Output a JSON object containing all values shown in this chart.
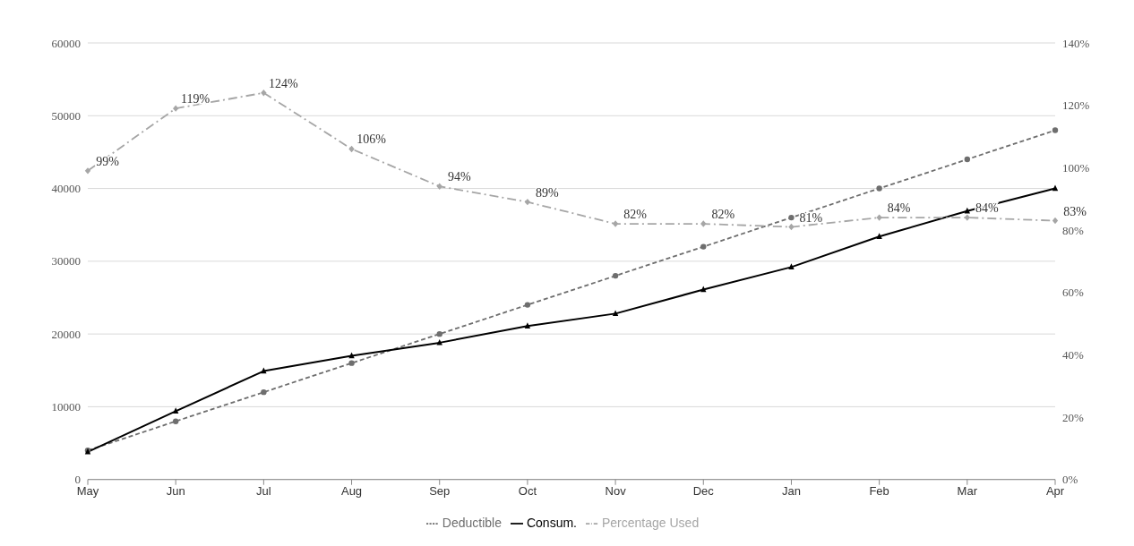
{
  "chart_data": {
    "type": "line",
    "categories": [
      "May",
      "Jun",
      "Jul",
      "Aug",
      "Sep",
      "Oct",
      "Nov",
      "Dec",
      "Jan",
      "Feb",
      "Mar",
      "Apr"
    ],
    "series": [
      {
        "name": "Deductible",
        "color": "#6e6e6e",
        "line_style": "dashed",
        "marker": "circle",
        "values": [
          4000,
          8000,
          12000,
          16000,
          20000,
          24000,
          28000,
          32000,
          36000,
          40000,
          44000,
          48000
        ]
      },
      {
        "name": "Consum.",
        "color": "#000000",
        "line_style": "solid",
        "marker": "triangle",
        "values": [
          3800,
          9400,
          14900,
          17000,
          18800,
          21100,
          22800,
          26100,
          29200,
          33400,
          36900,
          40000
        ]
      },
      {
        "name": "Percentage Used",
        "color": "#a6a6a6",
        "line_style": "dashdot",
        "marker": "diamond",
        "axis": "y2",
        "values": [
          99,
          119,
          124,
          106,
          94,
          89,
          82,
          82,
          81,
          84,
          84,
          83
        ],
        "value_labels": [
          "99%",
          "119%",
          "124%",
          "106%",
          "94%",
          "89%",
          "82%",
          "82%",
          "81%",
          "84%",
          "84%",
          "83%"
        ]
      }
    ],
    "ylim": [
      0,
      60000
    ],
    "yticks": [
      0,
      10000,
      20000,
      30000,
      40000,
      50000,
      60000
    ],
    "y2lim": [
      0,
      140
    ],
    "y2ticks": [
      {
        "value": 0,
        "label": "0%"
      },
      {
        "value": 20,
        "label": "20%"
      },
      {
        "value": 40,
        "label": "40%"
      },
      {
        "value": 60,
        "label": "60%"
      },
      {
        "value": 80,
        "label": "80%"
      },
      {
        "value": 100,
        "label": "100%"
      },
      {
        "value": 120,
        "label": "120%"
      },
      {
        "value": 140,
        "label": "140%"
      }
    ],
    "grid": "y",
    "legend": "bottom"
  }
}
